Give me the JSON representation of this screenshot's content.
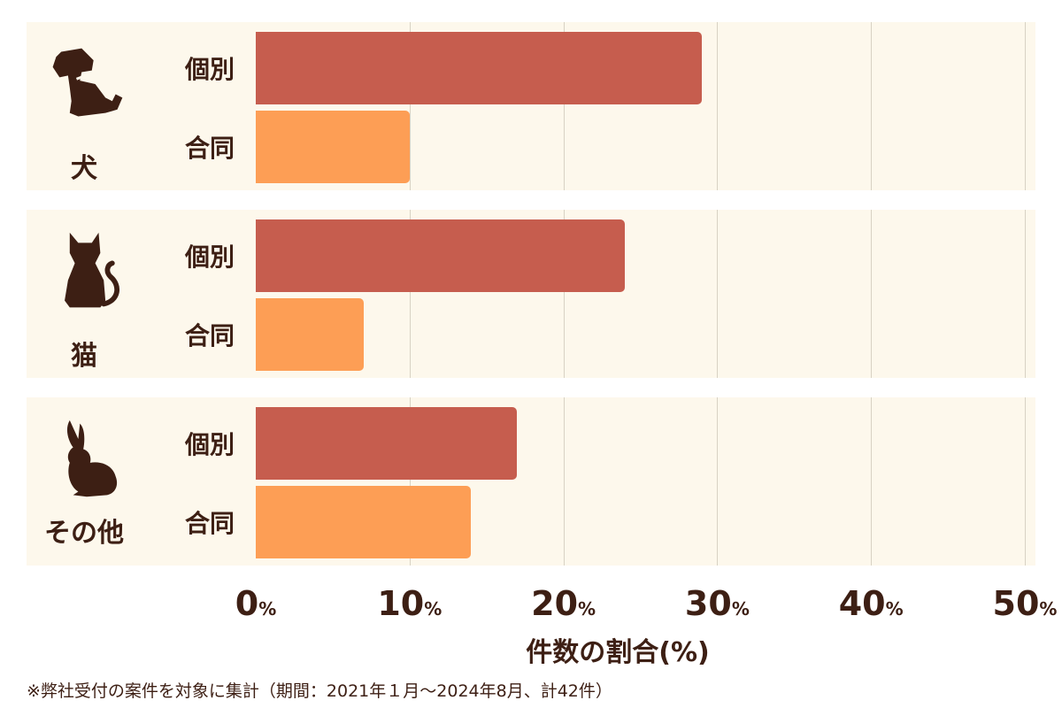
{
  "chart_data": {
    "type": "bar",
    "orientation": "horizontal",
    "groups": [
      {
        "name": "犬",
        "icon": "dog-icon"
      },
      {
        "name": "猫",
        "icon": "cat-icon"
      },
      {
        "name": "その他",
        "icon": "rabbit-icon"
      }
    ],
    "series": [
      {
        "name": "個別",
        "color": "#c65d4e",
        "values": [
          29,
          24,
          17
        ]
      },
      {
        "name": "合同",
        "color": "#fd9e55",
        "values": [
          10,
          7,
          14
        ]
      }
    ],
    "xlabel": "件数の割合(%)",
    "xlim": [
      0,
      50
    ],
    "xticks": [
      {
        "num": "0",
        "unit": "%"
      },
      {
        "num": "10",
        "unit": "%"
      },
      {
        "num": "20",
        "unit": "%"
      },
      {
        "num": "30",
        "unit": "%"
      },
      {
        "num": "40",
        "unit": "%"
      },
      {
        "num": "50",
        "unit": "%"
      }
    ],
    "grid": true,
    "note": "※弊社受付の案件を対象に集計（期間：2021年１月〜2024年8月、計42件）"
  }
}
